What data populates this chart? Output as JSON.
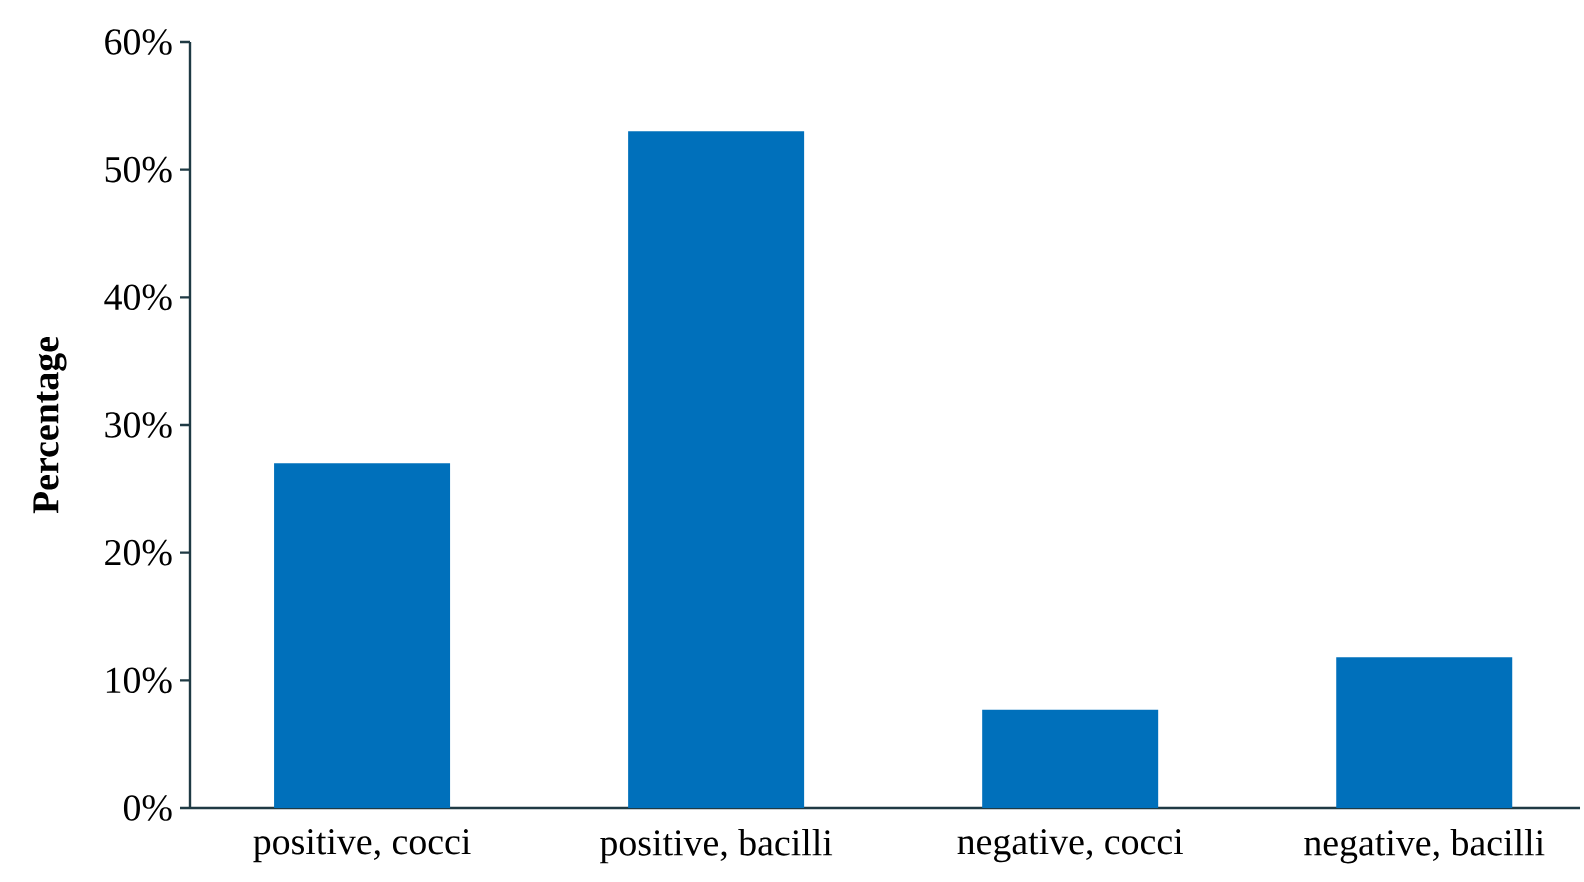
{
  "chart_data": {
    "type": "bar",
    "ylabel": "Percentage",
    "categories": [
      "positive, cocci",
      "positive, bacilli",
      "negative, cocci",
      "negative, bacilli"
    ],
    "values": [
      27,
      53,
      7.7,
      11.8
    ],
    "color": "#0070bb",
    "ylim": [
      0,
      60
    ],
    "yticks": [
      {
        "value": 0,
        "label": "0%"
      },
      {
        "value": 10,
        "label": "10%"
      },
      {
        "value": 20,
        "label": "20%"
      },
      {
        "value": 30,
        "label": "30%"
      },
      {
        "value": 40,
        "label": "40%"
      },
      {
        "value": 50,
        "label": "50%"
      },
      {
        "value": 60,
        "label": "60%"
      }
    ],
    "grid": false
  }
}
